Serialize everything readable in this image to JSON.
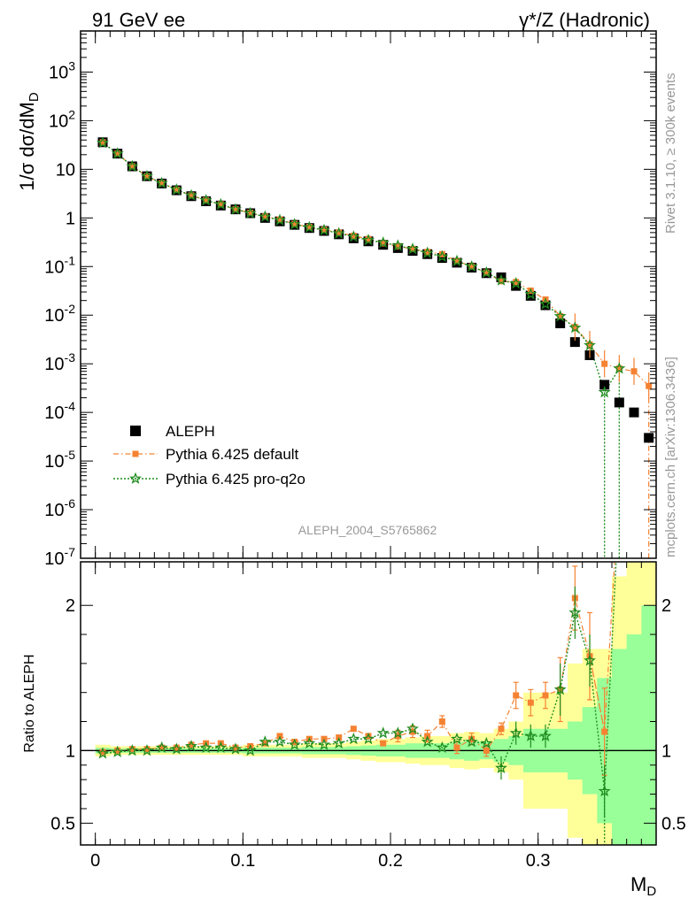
{
  "header": {
    "left": "91 GeV ee",
    "right": "γ*/Z (Hadronic)"
  },
  "watermark": "ALEPH_2004_S5765862",
  "side_texts": {
    "rivet": "Rivet 3.1.10, ≥ 300k events",
    "mcplots": "mcplots.cern.ch [arXiv:1306.3436]"
  },
  "colors": {
    "data": "#000000",
    "default": "#f58232",
    "pro": "#1f8c1f",
    "band_inner": "#99ff99",
    "band_outer": "#ffff99"
  },
  "chart_data": [
    {
      "type": "scatter",
      "panel": "main",
      "ylabel": "1/σ dσ/dM_D",
      "yscale": "log",
      "xlim": [
        -0.01,
        0.38
      ],
      "ylim": [
        1e-07,
        7000
      ],
      "yticks": [
        "10^-7",
        "10^-6",
        "10^-5",
        "10^-4",
        "10^-3",
        "10^-2",
        "10^-1",
        "1",
        "10",
        "10^2",
        "10^3"
      ],
      "legend": {
        "position": "lower-left",
        "entries": [
          "ALEPH",
          "Pythia 6.425 default",
          "Pythia 6.425 pro-q2o"
        ]
      },
      "x": [
        0.005,
        0.015,
        0.025,
        0.035,
        0.045,
        0.055,
        0.065,
        0.075,
        0.085,
        0.095,
        0.105,
        0.115,
        0.125,
        0.135,
        0.145,
        0.155,
        0.165,
        0.175,
        0.185,
        0.195,
        0.205,
        0.215,
        0.225,
        0.235,
        0.245,
        0.255,
        0.265,
        0.275,
        0.285,
        0.295,
        0.305,
        0.315,
        0.325,
        0.335,
        0.345,
        0.355,
        0.365,
        0.375
      ],
      "series": [
        {
          "name": "ALEPH",
          "marker": "square",
          "values": [
            36,
            21,
            11.5,
            7.2,
            5.1,
            3.7,
            2.8,
            2.2,
            1.8,
            1.5,
            1.25,
            1.0,
            0.85,
            0.72,
            0.62,
            0.54,
            0.46,
            0.38,
            0.33,
            0.28,
            0.24,
            0.21,
            0.18,
            0.15,
            0.12,
            0.095,
            0.073,
            0.06,
            0.04,
            0.025,
            0.016,
            0.0068,
            0.0028,
            0.0015,
            0.00037,
            0.00016,
            0.0001,
            3e-05
          ]
        },
        {
          "name": "Pythia 6.425 default",
          "marker": "filled-square",
          "values": [
            36,
            21,
            11.5,
            7.2,
            5.2,
            3.8,
            2.9,
            2.3,
            1.9,
            1.5,
            1.27,
            1.07,
            0.93,
            0.75,
            0.65,
            0.57,
            0.5,
            0.43,
            0.37,
            0.3,
            0.26,
            0.23,
            0.2,
            0.18,
            0.13,
            0.1,
            0.075,
            0.05,
            0.048,
            0.032,
            0.021,
            0.0095,
            0.0057,
            0.0025,
            0.001,
            0.0008,
            0.0007,
            0.00035
          ]
        },
        {
          "name": "Pythia 6.425 pro-q2o",
          "marker": "open-star",
          "values": [
            35,
            21,
            11.5,
            7.2,
            5.2,
            3.8,
            2.9,
            2.3,
            1.9,
            1.5,
            1.25,
            1.06,
            0.9,
            0.74,
            0.64,
            0.56,
            0.48,
            0.41,
            0.35,
            0.31,
            0.27,
            0.23,
            0.19,
            0.16,
            0.13,
            0.1,
            0.075,
            0.052,
            0.045,
            0.027,
            0.017,
            0.0095,
            0.0055,
            0.0024,
            0.00026,
            0.0008,
            null,
            null
          ]
        }
      ]
    },
    {
      "type": "scatter",
      "panel": "ratio",
      "ylabel": "Ratio to ALEPH",
      "xlabel": "M_D",
      "xlim": [
        -0.01,
        0.38
      ],
      "ylim": [
        0.35,
        2.3
      ],
      "xticks": [
        0,
        0.1,
        0.2,
        0.3
      ],
      "yticks": [
        0.5,
        1,
        2
      ],
      "x": [
        0.005,
        0.015,
        0.025,
        0.035,
        0.045,
        0.055,
        0.065,
        0.075,
        0.085,
        0.095,
        0.105,
        0.115,
        0.125,
        0.135,
        0.145,
        0.155,
        0.165,
        0.175,
        0.185,
        0.195,
        0.205,
        0.215,
        0.225,
        0.235,
        0.245,
        0.255,
        0.265,
        0.275,
        0.285,
        0.295,
        0.305,
        0.315,
        0.325,
        0.335,
        0.345,
        0.355,
        0.365,
        0.375
      ],
      "bands": {
        "inner": [
          0.02,
          0.015,
          0.015,
          0.015,
          0.015,
          0.015,
          0.015,
          0.015,
          0.015,
          0.015,
          0.02,
          0.02,
          0.02,
          0.02,
          0.025,
          0.025,
          0.025,
          0.03,
          0.035,
          0.04,
          0.04,
          0.05,
          0.05,
          0.05,
          0.06,
          0.07,
          0.06,
          0.08,
          0.1,
          0.15,
          0.15,
          0.15,
          0.2,
          0.3,
          0.5,
          0.7,
          0.8,
          1.0
        ],
        "outer": [
          0.04,
          0.03,
          0.03,
          0.03,
          0.03,
          0.03,
          0.03,
          0.03,
          0.03,
          0.03,
          0.04,
          0.04,
          0.04,
          0.04,
          0.05,
          0.05,
          0.05,
          0.06,
          0.07,
          0.08,
          0.08,
          0.09,
          0.1,
          0.1,
          0.12,
          0.13,
          0.12,
          0.15,
          0.2,
          0.4,
          0.4,
          0.4,
          0.6,
          0.7,
          0.7,
          1.2,
          1.3,
          1.3
        ]
      },
      "series": [
        {
          "name": "Pythia 6.425 default",
          "values": [
            0.99,
            1.0,
            1.01,
            1.01,
            1.02,
            1.02,
            1.04,
            1.05,
            1.05,
            1.02,
            1.03,
            1.05,
            1.1,
            1.06,
            1.08,
            1.08,
            1.09,
            1.15,
            1.1,
            1.05,
            1.1,
            1.13,
            1.1,
            1.2,
            1.02,
            1.08,
            1.0,
            1.15,
            1.38,
            1.33,
            1.38,
            1.42,
            2.05,
            1.65,
            1.13,
            null,
            null,
            null
          ]
        },
        {
          "name": "Pythia 6.425 pro-q2o",
          "values": [
            0.98,
            0.99,
            1.0,
            1.0,
            1.02,
            1.01,
            1.03,
            1.02,
            1.02,
            1.01,
            1.0,
            1.06,
            1.06,
            1.04,
            1.05,
            1.04,
            1.05,
            1.08,
            1.08,
            1.12,
            1.12,
            1.15,
            1.06,
            1.02,
            1.08,
            1.06,
            1.05,
            0.88,
            1.12,
            1.1,
            1.1,
            1.42,
            1.95,
            1.62,
            0.72,
            null,
            null,
            null
          ]
        }
      ]
    }
  ]
}
